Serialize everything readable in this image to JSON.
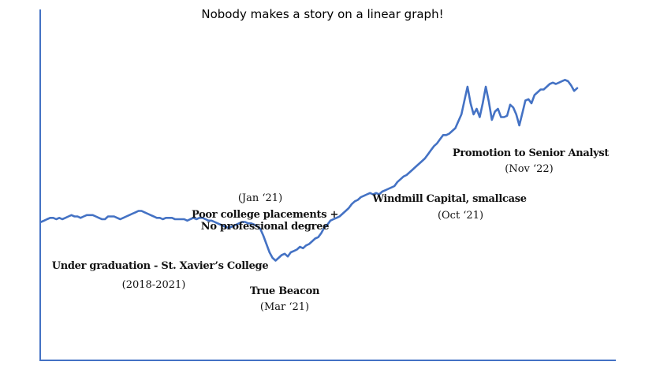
{
  "chart_data": {
    "type": "line",
    "title": "Nobody makes a story on a linear graph!",
    "xlabel": "",
    "ylabel": "",
    "axis_color": "#4472c4",
    "series": [
      {
        "color": "#4472c4",
        "values": [
          42,
          43,
          44,
          45,
          45,
          44,
          45,
          44,
          45,
          46,
          47,
          46,
          46,
          45,
          46,
          47,
          47,
          47,
          46,
          45,
          44,
          44,
          46,
          46,
          46,
          45,
          44,
          45,
          46,
          47,
          48,
          49,
          50,
          50,
          49,
          48,
          47,
          46,
          45,
          45,
          44,
          45,
          45,
          45,
          44,
          44,
          44,
          44,
          43,
          44,
          45,
          44,
          45,
          45,
          44,
          43,
          43,
          42,
          41,
          40,
          39,
          38,
          38,
          39,
          40,
          41,
          42,
          42,
          41,
          41,
          40,
          39,
          37,
          32,
          26,
          20,
          16,
          14,
          16,
          18,
          19,
          17,
          20,
          21,
          22,
          24,
          23,
          25,
          26,
          28,
          30,
          31,
          34,
          38,
          40,
          43,
          44,
          45,
          46,
          48,
          50,
          52,
          55,
          57,
          58,
          60,
          61,
          62,
          63,
          62,
          63,
          62,
          64,
          65,
          66,
          67,
          68,
          71,
          73,
          75,
          76,
          78,
          80,
          82,
          84,
          86,
          88,
          91,
          94,
          97,
          99,
          102,
          105,
          105,
          106,
          108,
          110,
          115,
          120,
          130,
          140,
          128,
          120,
          124,
          118,
          128,
          140,
          129,
          116,
          122,
          124,
          118,
          118,
          119,
          127,
          125,
          120,
          112,
          121,
          130,
          131,
          128,
          134,
          136,
          138,
          138,
          140,
          142,
          143,
          142,
          143,
          144,
          145,
          144,
          141,
          137,
          139
        ]
      }
    ],
    "annotations": [
      {
        "lines": [
          "Under graduation - St. Xavier’s College"
        ],
        "bold": true
      },
      {
        "lines": [
          "(2018-2021)"
        ],
        "bold": false
      },
      {
        "lines": [
          "(Jan ‘21)"
        ],
        "bold": false
      },
      {
        "lines": [
          "Poor college placements +",
          "No professional degree"
        ],
        "bold": true
      },
      {
        "lines": [
          "True Beacon"
        ],
        "bold": true
      },
      {
        "lines": [
          "(Mar ‘21)"
        ],
        "bold": false
      },
      {
        "lines": [
          "Windmill Capital, smallcase"
        ],
        "bold": true
      },
      {
        "lines": [
          "(Oct ‘21)"
        ],
        "bold": false
      },
      {
        "lines": [
          "Promotion to Senior Analyst"
        ],
        "bold": true
      },
      {
        "lines": [
          "(Nov ‘22)"
        ],
        "bold": false
      }
    ]
  }
}
